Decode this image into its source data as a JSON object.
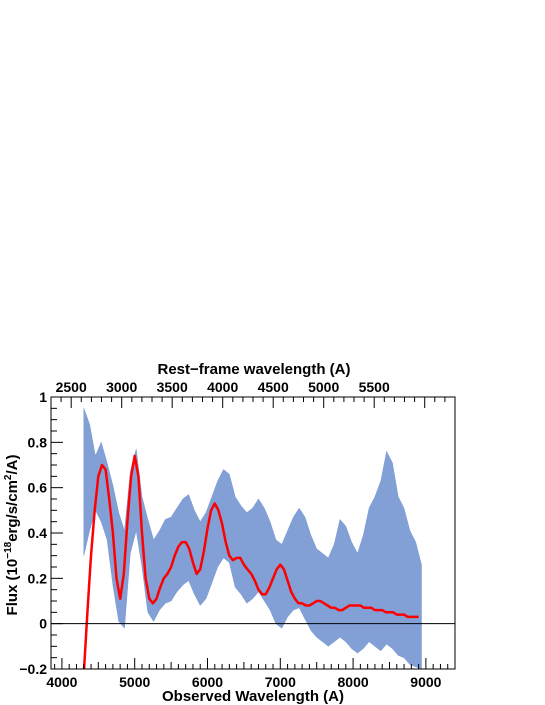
{
  "chart_data": {
    "type": "line",
    "title": "",
    "xlabel": "Observed Wavelength (A)",
    "x2label": "Rest−frame wavelength (A)",
    "ylabel": {
      "prefix": "Flux (10",
      "exp1": "−18",
      "mid": "erg/s/cm",
      "exp2": "2",
      "suffix": "/A)"
    },
    "xlim": [
      3850,
      9400
    ],
    "ylim": [
      -0.2,
      1.0
    ],
    "x2lim": [
      2300,
      6300
    ],
    "xticks": [
      4000,
      5000,
      6000,
      7000,
      8000,
      9000
    ],
    "xtick_labels": [
      "4000",
      "5000",
      "6000",
      "7000",
      "8000",
      "9000"
    ],
    "x2ticks": [
      2500,
      3000,
      3500,
      4000,
      4500,
      5000,
      5500
    ],
    "x2tick_labels": [
      "2500",
      "3000",
      "3500",
      "4000",
      "4500",
      "5000",
      "5500"
    ],
    "yticks": [
      -0.2,
      0,
      0.2,
      0.4,
      0.6,
      0.8,
      1.0
    ],
    "ytick_labels": [
      "−0.2",
      "0",
      "0.2",
      "0.4",
      "0.6",
      "0.8",
      "1"
    ],
    "zero_line": 0,
    "grid": false,
    "colors": {
      "spectrum_band": "#7b9bd4",
      "model": "#ff0000",
      "axes": "#000000"
    },
    "series": [
      {
        "style": "band",
        "x": [
          4300,
          4380,
          4460,
          4540,
          4620,
          4700,
          4780,
          4860,
          4940,
          5020,
          5100,
          5180,
          5260,
          5340,
          5420,
          5500,
          5580,
          5660,
          5740,
          5820,
          5900,
          5980,
          6060,
          6140,
          6220,
          6300,
          6380,
          6460,
          6540,
          6620,
          6700,
          6780,
          6860,
          6940,
          7020,
          7100,
          7180,
          7260,
          7340,
          7420,
          7500,
          7580,
          7660,
          7740,
          7820,
          7900,
          7980,
          8060,
          8140,
          8220,
          8300,
          8380,
          8460,
          8540,
          8620,
          8700,
          8780,
          8860,
          8940
        ],
        "upper": [
          0.95,
          0.88,
          0.74,
          0.8,
          0.71,
          0.61,
          0.49,
          0.41,
          0.67,
          0.77,
          0.56,
          0.46,
          0.37,
          0.41,
          0.46,
          0.47,
          0.51,
          0.55,
          0.57,
          0.5,
          0.45,
          0.49,
          0.56,
          0.63,
          0.68,
          0.66,
          0.56,
          0.52,
          0.49,
          0.51,
          0.55,
          0.51,
          0.45,
          0.37,
          0.35,
          0.41,
          0.47,
          0.51,
          0.47,
          0.39,
          0.33,
          0.31,
          0.29,
          0.35,
          0.46,
          0.43,
          0.36,
          0.31,
          0.39,
          0.51,
          0.56,
          0.63,
          0.76,
          0.71,
          0.56,
          0.51,
          0.41,
          0.36,
          0.26
        ],
        "lower": [
          0.3,
          0.41,
          0.5,
          0.45,
          0.37,
          0.17,
          0.01,
          -0.02,
          0.31,
          0.41,
          0.25,
          0.05,
          0.01,
          0.06,
          0.09,
          0.1,
          0.14,
          0.17,
          0.19,
          0.13,
          0.08,
          0.11,
          0.18,
          0.25,
          0.29,
          0.27,
          0.16,
          0.13,
          0.09,
          0.11,
          0.14,
          0.1,
          0.06,
          0.0,
          -0.02,
          0.03,
          0.06,
          0.07,
          0.02,
          -0.03,
          -0.06,
          -0.08,
          -0.1,
          -0.08,
          -0.06,
          -0.08,
          -0.11,
          -0.13,
          -0.11,
          -0.08,
          -0.1,
          -0.12,
          -0.09,
          -0.11,
          -0.14,
          -0.15,
          -0.18,
          -0.19,
          -0.2
        ]
      },
      {
        "style": "line",
        "x": [
          4300,
          4350,
          4400,
          4450,
          4500,
          4550,
          4600,
          4650,
          4700,
          4750,
          4800,
          4850,
          4900,
          4950,
          5000,
          5050,
          5100,
          5150,
          5200,
          5250,
          5300,
          5350,
          5400,
          5450,
          5500,
          5550,
          5600,
          5650,
          5700,
          5750,
          5800,
          5850,
          5900,
          5950,
          6000,
          6050,
          6100,
          6150,
          6200,
          6250,
          6300,
          6350,
          6400,
          6450,
          6500,
          6550,
          6600,
          6650,
          6700,
          6750,
          6800,
          6850,
          6900,
          6950,
          7000,
          7050,
          7100,
          7150,
          7200,
          7250,
          7300,
          7350,
          7400,
          7450,
          7500,
          7550,
          7600,
          7650,
          7700,
          7750,
          7800,
          7850,
          7900,
          7950,
          8000,
          8050,
          8100,
          8150,
          8200,
          8250,
          8300,
          8350,
          8400,
          8450,
          8500,
          8550,
          8600,
          8650,
          8700,
          8750,
          8800,
          8850,
          8900
        ],
        "y": [
          -0.22,
          0.05,
          0.3,
          0.5,
          0.65,
          0.7,
          0.68,
          0.55,
          0.4,
          0.2,
          0.11,
          0.22,
          0.45,
          0.65,
          0.74,
          0.65,
          0.4,
          0.2,
          0.11,
          0.09,
          0.11,
          0.16,
          0.2,
          0.22,
          0.25,
          0.3,
          0.34,
          0.36,
          0.36,
          0.33,
          0.27,
          0.22,
          0.24,
          0.32,
          0.42,
          0.5,
          0.53,
          0.5,
          0.44,
          0.36,
          0.3,
          0.28,
          0.29,
          0.29,
          0.26,
          0.24,
          0.22,
          0.19,
          0.15,
          0.13,
          0.13,
          0.16,
          0.2,
          0.24,
          0.26,
          0.24,
          0.19,
          0.14,
          0.11,
          0.09,
          0.09,
          0.08,
          0.08,
          0.09,
          0.1,
          0.1,
          0.09,
          0.08,
          0.07,
          0.07,
          0.06,
          0.06,
          0.07,
          0.08,
          0.08,
          0.08,
          0.08,
          0.07,
          0.07,
          0.07,
          0.06,
          0.06,
          0.06,
          0.05,
          0.05,
          0.05,
          0.04,
          0.04,
          0.04,
          0.03,
          0.03,
          0.03,
          0.03
        ]
      }
    ]
  }
}
